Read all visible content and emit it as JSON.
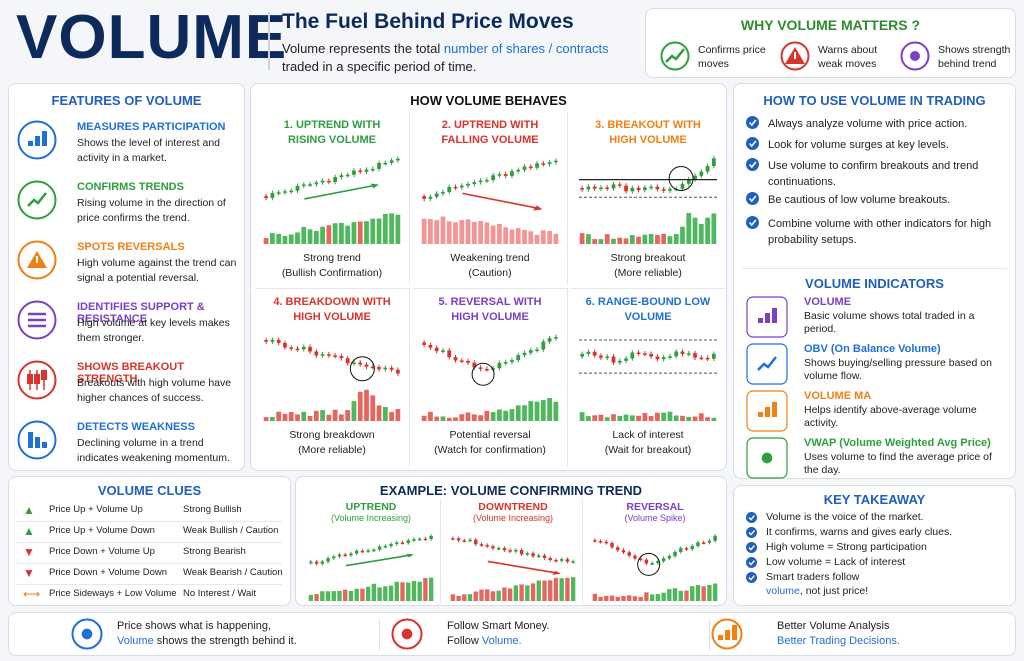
{
  "header": {
    "title": "VOLUME",
    "headline": "The Fuel Behind Price Moves",
    "description": [
      "Volume represents the total ",
      "number of shares / contracts",
      " traded in a specific period of time."
    ]
  },
  "why_volume_matters": {
    "title": "WHY VOLUME MATTERS ?",
    "items": [
      "Confirms price moves",
      "Warns about weak moves",
      "Shows strength behind trend"
    ]
  },
  "features": {
    "title": "FEATURES OF VOLUME",
    "items": [
      {
        "title": "MEASURES PARTICIPATION",
        "text": "Shows the level of interest and activity in a market."
      },
      {
        "title": "CONFIRMS TRENDS",
        "text": "Rising volume in the direction of price confirms the trend."
      },
      {
        "title": "SPOTS REVERSALS",
        "text": "High volume against the trend can signal a potential reversal."
      },
      {
        "title": "IDENTIFIES SUPPORT & RESISTANCE",
        "text": "High volume at key levels makes them stronger."
      },
      {
        "title": "SHOWS BREAKOUT STRENGTH",
        "text": "Breakouts with high volume have higher chances of success."
      },
      {
        "title": "DETECTS WEAKNESS",
        "text": "Declining volume in a trend indicates weakening momentum."
      }
    ]
  },
  "behaves": {
    "title": "HOW VOLUME BEHAVES",
    "panels": [
      {
        "title": "1. UPTREND WITH RISING VOLUME",
        "caption": "Strong trend",
        "note": "(Bullish Confirmation)"
      },
      {
        "title": "2. UPTREND WITH FALLING VOLUME",
        "caption": "Weakening trend",
        "note": "(Caution)"
      },
      {
        "title": "3. BREAKOUT WITH HIGH VOLUME",
        "caption": "Strong breakout",
        "note": "(More reliable)"
      },
      {
        "title": "4. BREAKDOWN WITH HIGH VOLUME",
        "caption": "Strong breakdown",
        "note": "(More reliable)"
      },
      {
        "title": "5. REVERSAL WITH HIGH VOLUME",
        "caption": "Potential reversal",
        "note": "(Watch for confirmation)"
      },
      {
        "title": "6. RANGE-BOUND LOW VOLUME",
        "caption": "Lack of interest",
        "note": "(Wait for breakout)"
      }
    ]
  },
  "how_to_use": {
    "title": "HOW TO USE VOLUME IN TRADING",
    "items": [
      "Always analyze volume with price action.",
      "Look for volume surges at key levels.",
      "Use volume to confirm breakouts and trend continuations.",
      "Be cautious of low volume breakouts.",
      "Combine volume with other indicators for high probability setups."
    ]
  },
  "indicators": {
    "title": "VOLUME INDICATORS",
    "items": [
      {
        "name": "VOLUME",
        "text": "Basic volume shows total traded in a period."
      },
      {
        "name": "OBV (On Balance Volume)",
        "text": "Shows buying/selling pressure based on volume flow."
      },
      {
        "name": "VOLUME MA",
        "text": "Helps identify above-average volume activity."
      },
      {
        "name": "VWAP (Volume Weighted Avg Price)",
        "text": "Uses volume to find the average price of the day."
      }
    ]
  },
  "clues": {
    "title": "VOLUME CLUES",
    "rows": [
      [
        "Price Up + Volume Up",
        "Strong Bullish"
      ],
      [
        "Price Up + Volume Down",
        "Weak Bullish / Caution"
      ],
      [
        "Price Down + Volume Up",
        "Strong Bearish"
      ],
      [
        "Price Down + Volume Down",
        "Weak Bearish / Caution"
      ],
      [
        "Price Sideways + Low Volume",
        "No Interest / Wait"
      ]
    ]
  },
  "example": {
    "title": "EXAMPLE: VOLUME CONFIRMING TREND",
    "panels": [
      {
        "title": "UPTREND",
        "subtitle": "(Volume Increasing)"
      },
      {
        "title": "DOWNTREND",
        "subtitle": "(Volume Increasing)"
      },
      {
        "title": "REVERSAL",
        "subtitle": "(Volume Spike)"
      }
    ]
  },
  "takeaway": {
    "title": "KEY TAKEAWAY",
    "items": [
      [
        "Volume is the voice of the market."
      ],
      [
        "It confirms, warns and gives early clues."
      ],
      [
        "High volume = Strong participation"
      ],
      [
        "Low volume = Lack of interest"
      ],
      [
        "Smart traders follow ",
        "volume",
        ", not just price!"
      ]
    ]
  },
  "footer": {
    "items": [
      [
        [
          "Price shows what is happening,"
        ],
        [
          "Volume",
          " shows the strength behind it."
        ]
      ],
      [
        [
          "Follow Smart Money."
        ],
        [
          "Follow ",
          "Volume."
        ]
      ],
      [
        [
          "Better Volume Analysis"
        ],
        [
          "Better Trading Decisions."
        ]
      ]
    ]
  }
}
